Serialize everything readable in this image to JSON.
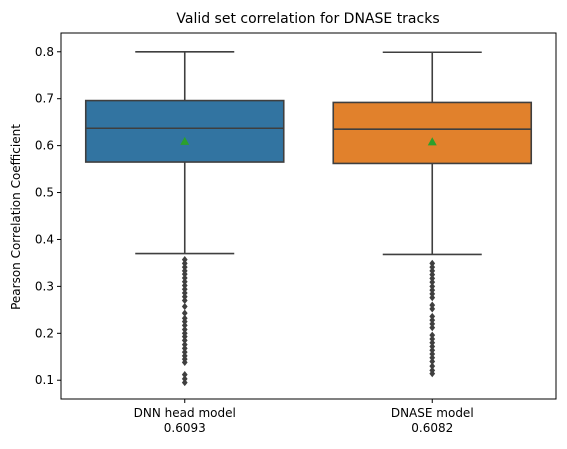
{
  "chart_data": {
    "type": "box",
    "title": "Valid set correlation for DNASE tracks",
    "xlabel": "",
    "ylabel": "Pearson Correlation Coefficient",
    "ylim": [
      0.06,
      0.84
    ],
    "yticks": [
      0.1,
      0.2,
      0.3,
      0.4,
      0.5,
      0.6,
      0.7,
      0.8
    ],
    "categories": [
      "DNN head model\n0.6093",
      "DNASE model\n0.6082"
    ],
    "grid": false,
    "mean_marker_color": "#2ca02c",
    "boxes": [
      {
        "label_line1": "DNN head model",
        "label_line2": "0.6093",
        "color": "#3274a1",
        "whisker_low": 0.37,
        "q1": 0.565,
        "median": 0.637,
        "q3": 0.696,
        "whisker_high": 0.8,
        "mean": 0.6093,
        "outliers": [
          0.357,
          0.349,
          0.341,
          0.333,
          0.326,
          0.318,
          0.31,
          0.302,
          0.294,
          0.286,
          0.278,
          0.27,
          0.257,
          0.243,
          0.232,
          0.225,
          0.217,
          0.208,
          0.2,
          0.193,
          0.185,
          0.176,
          0.168,
          0.16,
          0.152,
          0.145,
          0.138,
          0.112,
          0.103,
          0.095
        ]
      },
      {
        "label_line1": "DNASE model",
        "label_line2": "0.6082",
        "color": "#e1812c",
        "whisker_low": 0.368,
        "q1": 0.562,
        "median": 0.635,
        "q3": 0.692,
        "whisker_high": 0.799,
        "mean": 0.6082,
        "outliers": [
          0.349,
          0.341,
          0.333,
          0.325,
          0.317,
          0.309,
          0.3,
          0.292,
          0.284,
          0.276,
          0.26,
          0.252,
          0.236,
          0.228,
          0.22,
          0.212,
          0.196,
          0.188,
          0.18,
          0.172,
          0.164,
          0.156,
          0.148,
          0.14,
          0.13,
          0.121,
          0.114
        ]
      }
    ]
  }
}
